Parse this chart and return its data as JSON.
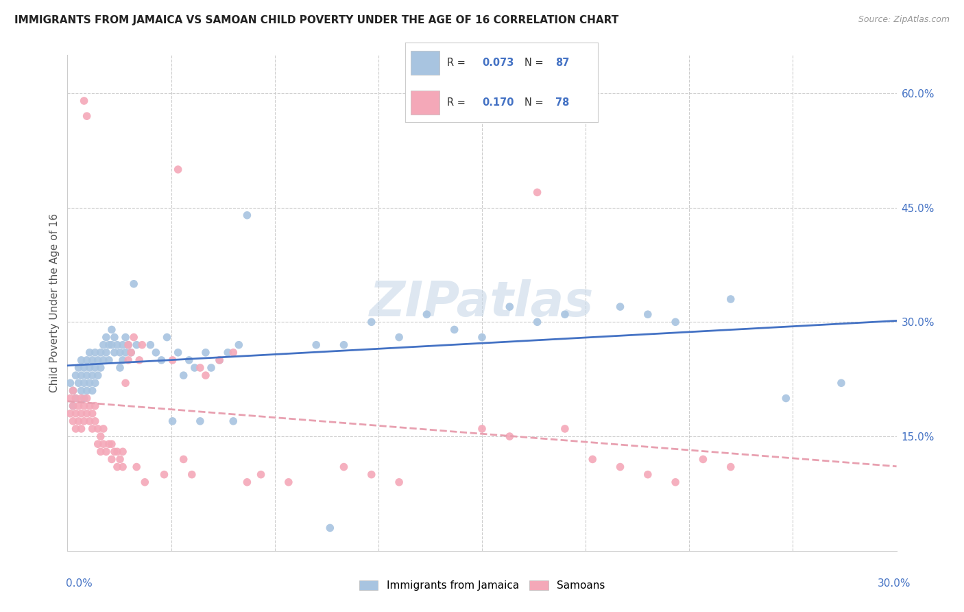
{
  "title": "IMMIGRANTS FROM JAMAICA VS SAMOAN CHILD POVERTY UNDER THE AGE OF 16 CORRELATION CHART",
  "source": "Source: ZipAtlas.com",
  "ylabel": "Child Poverty Under the Age of 16",
  "ylabel_right_ticks": [
    "60.0%",
    "45.0%",
    "30.0%",
    "15.0%"
  ],
  "ylabel_right_vals": [
    0.6,
    0.45,
    0.3,
    0.15
  ],
  "xmin": 0.0,
  "xmax": 0.3,
  "ymin": 0.0,
  "ymax": 0.65,
  "jamaica_color": "#a8c4e0",
  "samoa_color": "#f4a8b8",
  "jamaica_line_color": "#4472c4",
  "samoa_line_color": "#e8a0b0",
  "r_jamaica": 0.073,
  "n_jamaica": 87,
  "r_samoa": 0.17,
  "n_samoa": 78,
  "background_color": "#ffffff",
  "grid_color": "#cccccc",
  "watermark": "ZIPatlas"
}
